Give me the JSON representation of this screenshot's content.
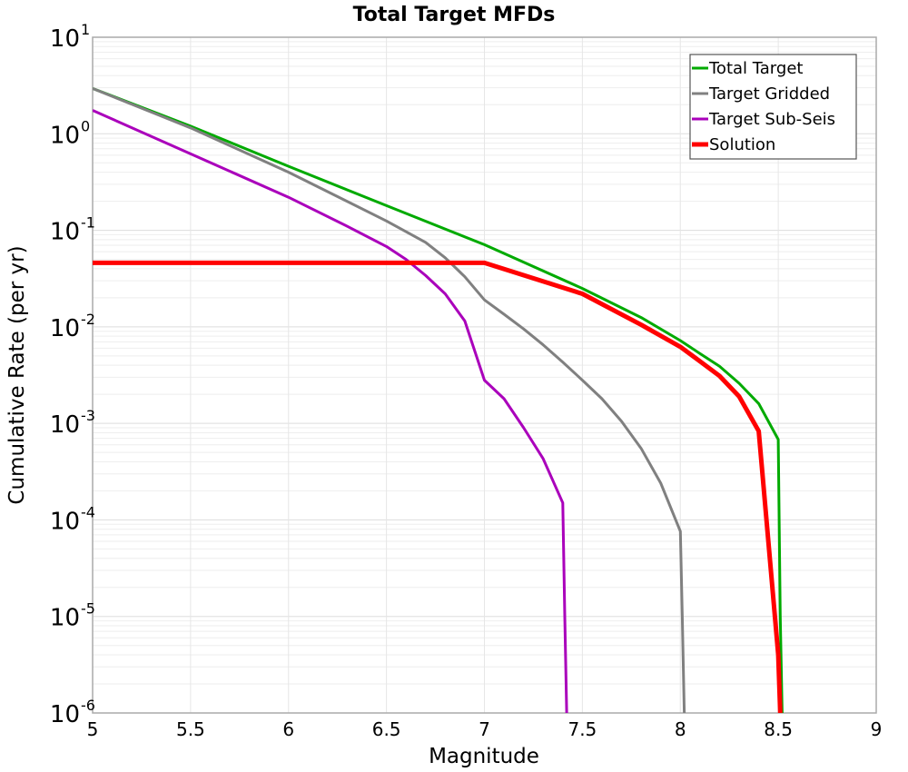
{
  "chart_data": {
    "type": "line",
    "title": "Total Target MFDs",
    "xlabel": "Magnitude",
    "ylabel": "Cumulative Rate (per yr)",
    "xlim": [
      5,
      9
    ],
    "ylim": [
      1e-06,
      10
    ],
    "yscale": "log",
    "grid": true,
    "legend_position": "upper right",
    "x_ticks": [
      "5",
      "5.5",
      "6",
      "6.5",
      "7",
      "7.5",
      "8",
      "8.5",
      "9"
    ],
    "y_ticks": [
      {
        "base": "10",
        "exp": "1"
      },
      {
        "base": "10",
        "exp": "0"
      },
      {
        "base": "10",
        "exp": "-1"
      },
      {
        "base": "10",
        "exp": "-2"
      },
      {
        "base": "10",
        "exp": "-3"
      },
      {
        "base": "10",
        "exp": "-4"
      },
      {
        "base": "10",
        "exp": "-5"
      },
      {
        "base": "10",
        "exp": "-6"
      }
    ],
    "series": [
      {
        "name": "Total Target",
        "color": "#00aa00",
        "width": 3,
        "x": [
          5.0,
          5.5,
          6.0,
          6.5,
          7.0,
          7.5,
          7.8,
          8.0,
          8.1,
          8.2,
          8.3,
          8.4,
          8.5,
          8.51,
          8.52
        ],
        "y": [
          2.95,
          1.2,
          0.46,
          0.18,
          0.071,
          0.025,
          0.0125,
          0.0072,
          0.0053,
          0.0039,
          0.0026,
          0.0016,
          0.00068,
          1e-05,
          1e-06
        ]
      },
      {
        "name": "Target Gridded",
        "color": "#808080",
        "width": 3,
        "x": [
          5.0,
          5.5,
          6.0,
          6.5,
          6.7,
          6.8,
          6.9,
          7.0,
          7.1,
          7.2,
          7.3,
          7.4,
          7.5,
          7.6,
          7.7,
          7.8,
          7.9,
          8.0,
          8.01,
          8.02
        ],
        "y": [
          2.95,
          1.15,
          0.4,
          0.125,
          0.075,
          0.052,
          0.033,
          0.019,
          0.0135,
          0.0095,
          0.0065,
          0.0043,
          0.0028,
          0.0018,
          0.00105,
          0.00055,
          0.00024,
          7.6e-05,
          1e-05,
          1e-06
        ]
      },
      {
        "name": "Target Sub-Seis",
        "color": "#aa00bb",
        "width": 3,
        "x": [
          5.0,
          5.5,
          6.0,
          6.3,
          6.5,
          6.6,
          6.7,
          6.8,
          6.9,
          7.0,
          7.1,
          7.2,
          7.3,
          7.4,
          7.41,
          7.42
        ],
        "y": [
          1.75,
          0.62,
          0.22,
          0.11,
          0.068,
          0.05,
          0.034,
          0.022,
          0.0115,
          0.0028,
          0.0018,
          0.0009,
          0.00043,
          0.00015,
          1e-05,
          1e-06
        ]
      },
      {
        "name": "Solution",
        "color": "#ff0000",
        "width": 5,
        "x": [
          5.0,
          7.0,
          7.5,
          7.8,
          8.0,
          8.1,
          8.2,
          8.3,
          8.4,
          8.5,
          8.51
        ],
        "y": [
          0.046,
          0.046,
          0.022,
          0.0105,
          0.0062,
          0.0044,
          0.0031,
          0.0019,
          0.00083,
          4e-06,
          1e-06
        ]
      }
    ]
  },
  "legend": {
    "items": [
      {
        "label": "Total Target",
        "color": "#00aa00"
      },
      {
        "label": "Target Gridded",
        "color": "#808080"
      },
      {
        "label": "Target Sub-Seis",
        "color": "#aa00bb"
      },
      {
        "label": "Solution",
        "color": "#ff0000"
      }
    ]
  }
}
